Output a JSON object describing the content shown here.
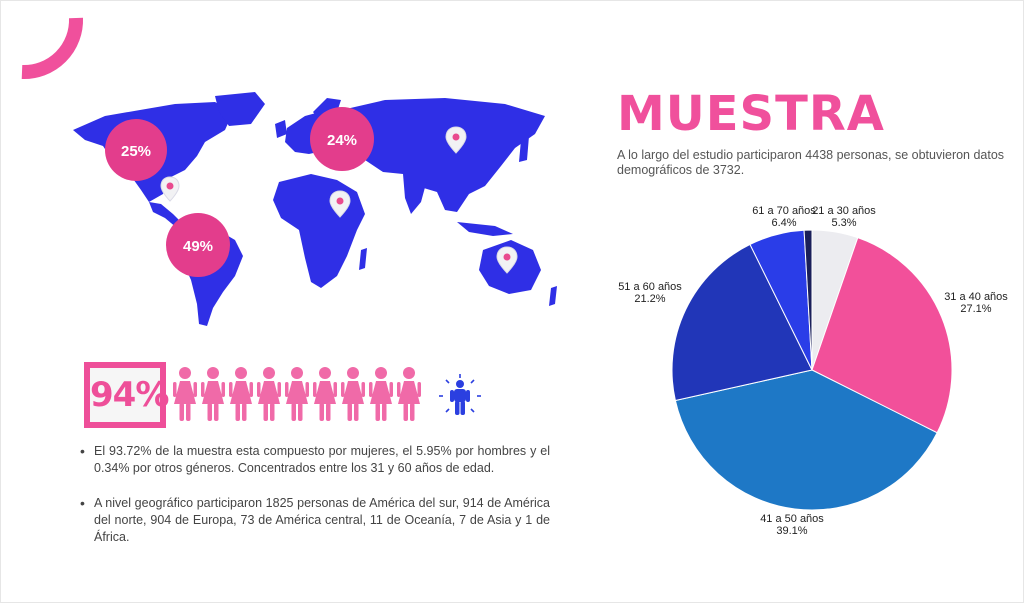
{
  "title": "MUESTRA",
  "subtitle": "A lo largo del estudio participaron 4438 personas, se obtuvieron datos demográficos de 3732.",
  "map": {
    "regions": [
      {
        "label": "25%"
      },
      {
        "label": "24%"
      },
      {
        "label": "49%"
      }
    ]
  },
  "gender": {
    "percent": "94%",
    "women_icons": 9,
    "men_icons": 1
  },
  "bullets": [
    "El 93.72% de la muestra esta compuesto por mujeres, el 5.95% por hombres y el 0.34% por otros géneros. Concentrados entre los 31 y 60 años de edad.",
    "A nivel geográfico participaron 1825 personas de América del sur, 914  de América del norte, 904 de Europa, 73  de América central, 11 de Oceanía, 7 de Asia y 1 de África."
  ],
  "colors": {
    "accent": "#f0509c",
    "map": "#2f2fe6",
    "marker": "#e94a8e"
  },
  "chart_data": {
    "type": "pie",
    "slices": [
      {
        "name": "21 a 30 años",
        "pct_label": "5.3%",
        "value": 5.3,
        "color": "#ececf0"
      },
      {
        "name": "31 a 40 años",
        "pct_label": "27.1%",
        "value": 27.1,
        "color": "#f2509a"
      },
      {
        "name": "41 a 50 años",
        "pct_label": "39.1%",
        "value": 39.1,
        "color": "#1e78c6"
      },
      {
        "name": "51 a 60 años",
        "pct_label": "21.2%",
        "value": 21.2,
        "color": "#2136b8"
      },
      {
        "name": "61 a 70 años",
        "pct_label": "6.4%",
        "value": 6.4,
        "color": "#2a3de8"
      },
      {
        "name": "",
        "pct_label": "",
        "value": 0.9,
        "color": "#1a1f5a"
      }
    ]
  }
}
